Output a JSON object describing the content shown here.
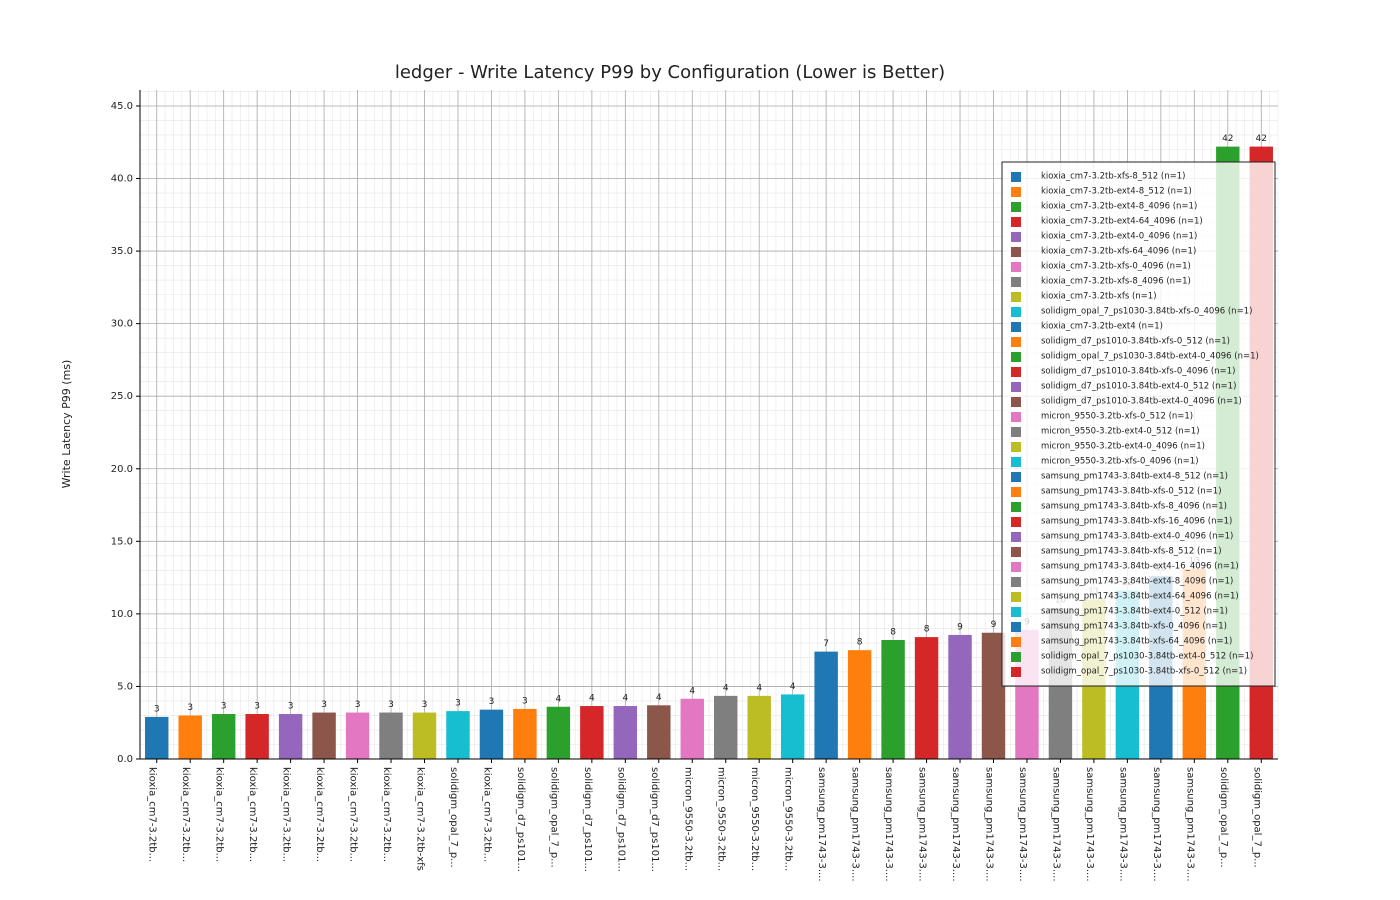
{
  "chart_data": {
    "type": "bar",
    "title": "ledger - Write Latency P99 by Configuration (Lower is Better)",
    "y_label": "Write Latency P99 (ms)",
    "categories": [
      "kioxia_cm7-3.2tb...",
      "kioxia_cm7-3.2tb...",
      "kioxia_cm7-3.2tb...",
      "kioxia_cm7-3.2tb...",
      "kioxia_cm7-3.2tb...",
      "kioxia_cm7-3.2tb...",
      "kioxia_cm7-3.2tb...",
      "kioxia_cm7-3.2tb...",
      "kioxia_cm7-3.2tb-xfs",
      "solidigm_opal_7_p...",
      "kioxia_cm7-3.2tb...",
      "solidigm_d7_ps101...",
      "solidigm_opal_7_p...",
      "solidigm_d7_ps101...",
      "solidigm_d7_ps101...",
      "solidigm_d7_ps101...",
      "micron_9550-3.2tb...",
      "micron_9550-3.2tb...",
      "micron_9550-3.2tb...",
      "micron_9550-3.2tb...",
      "samsung_pm1743-3....",
      "samsung_pm1743-3....",
      "samsung_pm1743-3....",
      "samsung_pm1743-3....",
      "samsung_pm1743-3....",
      "samsung_pm1743-3....",
      "samsung_pm1743-3....",
      "samsung_pm1743-3....",
      "samsung_pm1743-3....",
      "samsung_pm1743-3....",
      "samsung_pm1743-3....",
      "samsung_pm1743-3....",
      "solidigm_opal_7_p...",
      "solidigm_opal_7_p..."
    ],
    "values": [
      2.9,
      3.0,
      3.1,
      3.1,
      3.1,
      3.2,
      3.2,
      3.2,
      3.2,
      3.3,
      3.4,
      3.45,
      3.6,
      3.65,
      3.65,
      3.7,
      4.15,
      4.35,
      4.35,
      4.45,
      7.4,
      7.5,
      8.2,
      8.4,
      8.55,
      8.7,
      8.9,
      10.4,
      11.0,
      11.6,
      12.6,
      13.1,
      42.2,
      42.2
    ],
    "value_labels": [
      "3",
      "3",
      "3",
      "3",
      "3",
      "3",
      "3",
      "3",
      "3",
      "3",
      "3",
      "3",
      "4",
      "4",
      "4",
      "4",
      "4",
      "4",
      "4",
      "4",
      "7",
      "8",
      "8",
      "8",
      "9",
      "9",
      "9",
      "10",
      "11",
      "12",
      "13",
      "13",
      "42",
      "42"
    ],
    "colors": [
      "#1f77b4",
      "#ff7f0e",
      "#2ca02c",
      "#d62728",
      "#9467bd",
      "#8c564b",
      "#e377c2",
      "#7f7f7f",
      "#bcbd22",
      "#17becf",
      "#1f77b4",
      "#ff7f0e",
      "#2ca02c",
      "#d62728",
      "#9467bd",
      "#8c564b",
      "#e377c2",
      "#7f7f7f",
      "#bcbd22",
      "#17becf",
      "#1f77b4",
      "#ff7f0e",
      "#2ca02c",
      "#d62728",
      "#9467bd",
      "#8c564b",
      "#e377c2",
      "#7f7f7f",
      "#bcbd22",
      "#17becf",
      "#1f77b4",
      "#ff7f0e",
      "#2ca02c",
      "#d62728"
    ],
    "legend_labels": [
      "kioxia_cm7-3.2tb-xfs-8_512 (n=1)",
      "kioxia_cm7-3.2tb-ext4-8_512 (n=1)",
      "kioxia_cm7-3.2tb-ext4-8_4096 (n=1)",
      "kioxia_cm7-3.2tb-ext4-64_4096 (n=1)",
      "kioxia_cm7-3.2tb-ext4-0_4096 (n=1)",
      "kioxia_cm7-3.2tb-xfs-64_4096 (n=1)",
      "kioxia_cm7-3.2tb-xfs-0_4096 (n=1)",
      "kioxia_cm7-3.2tb-xfs-8_4096 (n=1)",
      "kioxia_cm7-3.2tb-xfs (n=1)",
      "solidigm_opal_7_ps1030-3.84tb-xfs-0_4096 (n=1)",
      "kioxia_cm7-3.2tb-ext4 (n=1)",
      "solidigm_d7_ps1010-3.84tb-xfs-0_512 (n=1)",
      "solidigm_opal_7_ps1030-3.84tb-ext4-0_4096 (n=1)",
      "solidigm_d7_ps1010-3.84tb-xfs-0_4096 (n=1)",
      "solidigm_d7_ps1010-3.84tb-ext4-0_512 (n=1)",
      "solidigm_d7_ps1010-3.84tb-ext4-0_4096 (n=1)",
      "micron_9550-3.2tb-xfs-0_512 (n=1)",
      "micron_9550-3.2tb-ext4-0_512 (n=1)",
      "micron_9550-3.2tb-ext4-0_4096 (n=1)",
      "micron_9550-3.2tb-xfs-0_4096 (n=1)",
      "samsung_pm1743-3.84tb-ext4-8_512 (n=1)",
      "samsung_pm1743-3.84tb-xfs-0_512 (n=1)",
      "samsung_pm1743-3.84tb-xfs-8_4096 (n=1)",
      "samsung_pm1743-3.84tb-xfs-16_4096 (n=1)",
      "samsung_pm1743-3.84tb-ext4-0_4096 (n=1)",
      "samsung_pm1743-3.84tb-xfs-8_512 (n=1)",
      "samsung_pm1743-3.84tb-ext4-16_4096 (n=1)",
      "samsung_pm1743-3.84tb-ext4-8_4096 (n=1)",
      "samsung_pm1743-3.84tb-ext4-64_4096 (n=1)",
      "samsung_pm1743-3.84tb-ext4-0_512 (n=1)",
      "samsung_pm1743-3.84tb-xfs-0_4096 (n=1)",
      "samsung_pm1743-3.84tb-xfs-64_4096 (n=1)",
      "solidigm_opal_7_ps1030-3.84tb-ext4-0_512 (n=1)",
      "solidigm_opal_7_ps1030-3.84tb-xfs-0_512 (n=1)"
    ],
    "ylim": [
      0,
      46.1
    ],
    "yticks": [
      {
        "value": 0,
        "label": "0.0"
      },
      {
        "value": 5,
        "label": "5.0"
      },
      {
        "value": 10,
        "label": "10.0"
      },
      {
        "value": 15,
        "label": "15.0"
      },
      {
        "value": 20,
        "label": "20.0"
      },
      {
        "value": 25,
        "label": "25.0"
      },
      {
        "value": 30,
        "label": "30.0"
      },
      {
        "value": 35,
        "label": "35.0"
      },
      {
        "value": 40,
        "label": "40.0"
      },
      {
        "value": 45,
        "label": "45.0"
      }
    ],
    "grid": true,
    "minor_grid": true,
    "legend_position": "upper right"
  }
}
